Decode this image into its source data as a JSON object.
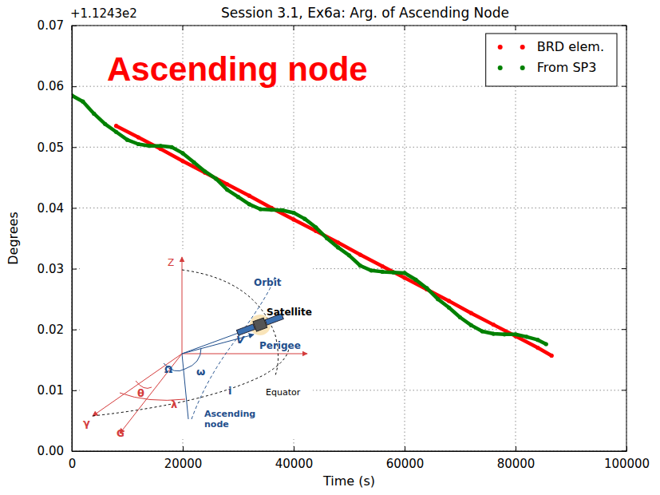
{
  "chart_data": {
    "type": "line",
    "title": "Session 3.1, Ex6a: Arg. of Ascending Node",
    "offset_text": "+1.1243e2",
    "x_label": "Time (s)",
    "y_label": "Degrees",
    "annotations": [
      "Ascending node"
    ],
    "diagram_labels": [
      "Z",
      "Orbit",
      "Satellite",
      "V",
      "Perigee",
      "Ω",
      "ω",
      "θ",
      "λ",
      "i",
      "Equator",
      "γ",
      "G",
      "Ascending node"
    ],
    "xlim": [
      0,
      100000
    ],
    "xticks": [
      0,
      20000,
      40000,
      60000,
      80000,
      100000
    ],
    "ylim": [
      0,
      0.07
    ],
    "yticks": [
      {
        "value": 0,
        "label": "0.00"
      },
      {
        "value": 0.01,
        "label": "0.01"
      },
      {
        "value": 0.02,
        "label": "0.02"
      },
      {
        "value": 0.03,
        "label": "0.03"
      },
      {
        "value": 0.04,
        "label": "0.04"
      },
      {
        "value": 0.05,
        "label": "0.05"
      },
      {
        "value": 0.06,
        "label": "0.06"
      },
      {
        "value": 0.07,
        "label": "0.07"
      }
    ],
    "grid": true,
    "legend": "upper right",
    "series": [
      {
        "name": "BRD elem.",
        "color": "#ff0000",
        "marker": "o",
        "line_style": "solid",
        "x": [
          8000,
          12000,
          16000,
          20000,
          24000,
          28000,
          32000,
          36000,
          40000,
          44000,
          48000,
          52000,
          56000,
          60000,
          64000,
          68000,
          72000,
          76000,
          80000,
          84000,
          86500
        ],
        "values": [
          0.0535,
          0.0516,
          0.0497,
          0.0477,
          0.0458,
          0.0439,
          0.042,
          0.04,
          0.0381,
          0.0362,
          0.0343,
          0.0323,
          0.0304,
          0.0285,
          0.0266,
          0.0247,
          0.0227,
          0.0208,
          0.0189,
          0.017,
          0.0157
        ]
      },
      {
        "name": "From SP3",
        "color": "#008000",
        "marker": "o",
        "line_style": "solid",
        "x": [
          0,
          2000,
          4000,
          6000,
          8000,
          10000,
          12000,
          14000,
          16000,
          18000,
          20000,
          22000,
          24000,
          26000,
          28000,
          30000,
          32000,
          34000,
          36000,
          38000,
          40000,
          42000,
          44000,
          46000,
          48000,
          50000,
          52000,
          54000,
          56000,
          58000,
          60000,
          62000,
          64000,
          66000,
          68000,
          70000,
          72000,
          74000,
          76000,
          78000,
          80000,
          82000,
          84000,
          85500
        ],
        "values": [
          0.0585,
          0.0575,
          0.0555,
          0.0538,
          0.0525,
          0.0512,
          0.0505,
          0.0502,
          0.0502,
          0.05,
          0.049,
          0.0475,
          0.046,
          0.0448,
          0.043,
          0.0418,
          0.0406,
          0.0398,
          0.0397,
          0.0396,
          0.0392,
          0.0382,
          0.0368,
          0.035,
          0.0335,
          0.0322,
          0.0305,
          0.0297,
          0.0295,
          0.0294,
          0.0293,
          0.0282,
          0.0268,
          0.025,
          0.0236,
          0.022,
          0.0207,
          0.0197,
          0.0193,
          0.0192,
          0.0192,
          0.0188,
          0.0183,
          0.0176
        ]
      }
    ]
  }
}
